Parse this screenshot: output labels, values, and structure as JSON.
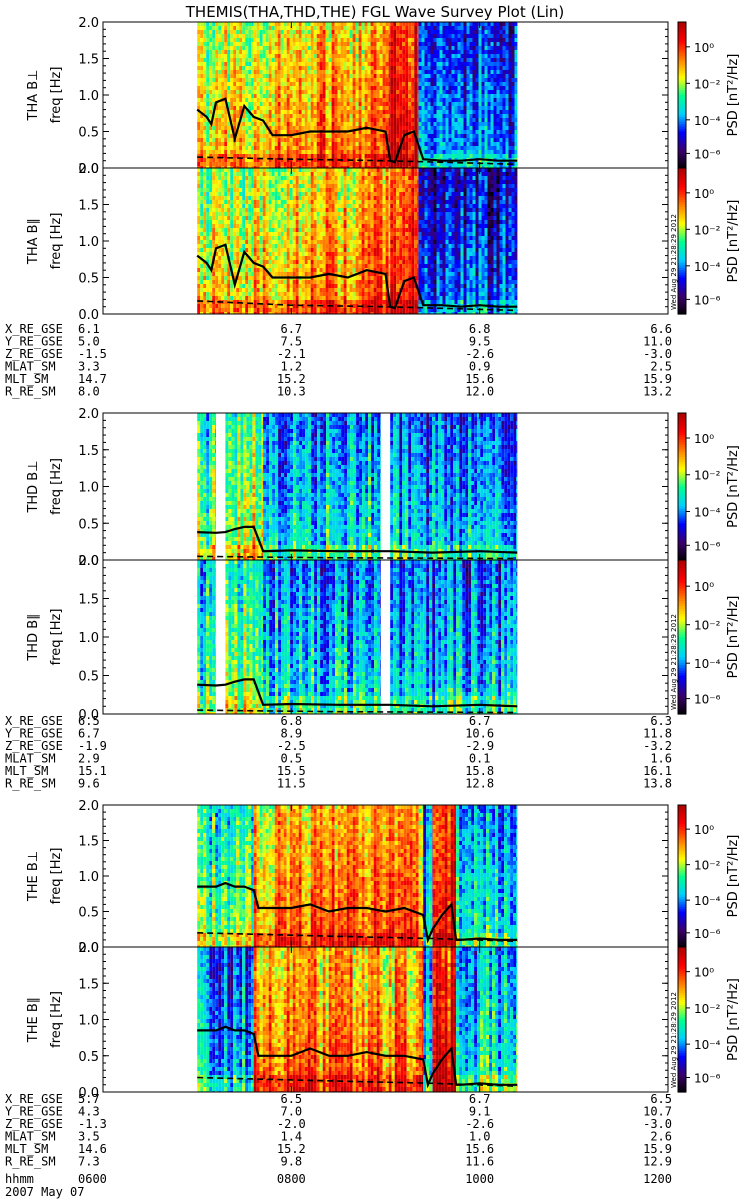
{
  "title": "THEMIS(THA,THD,THE) FGL Wave Survey Plot (Lin)",
  "colorbar": {
    "label": "PSD [nT²/Hz]",
    "ticks": [
      "10⁰",
      "10⁻²",
      "10⁻⁴",
      "10⁻⁶"
    ],
    "timestamp": "Wed Aug 29 21:28:29 2012",
    "colors": [
      "#000000",
      "#3b006b",
      "#0000ff",
      "#00d0ff",
      "#00ff90",
      "#ffff00",
      "#ff8000",
      "#ff0000",
      "#b00000"
    ]
  },
  "time_axis": {
    "row_label": "hhmm",
    "date_label": "2007 May 07",
    "ticks": [
      "0600",
      "0800",
      "1000",
      "1200"
    ],
    "range_hours": [
      6,
      12
    ]
  },
  "chart_data": [
    {
      "type": "heatmap",
      "probe": "THA",
      "component": "B⊥",
      "ylabel": "freq [Hz]",
      "panel_label": "THA B⊥",
      "ylim": [
        0,
        2.0
      ],
      "yticks": [
        "0.0",
        "0.5",
        "1.0",
        "1.5",
        "2.0"
      ],
      "data_spans_hours": [
        [
          7.0,
          7.6
        ],
        [
          7.6,
          8.3
        ],
        [
          8.3,
          9.05
        ],
        [
          9.05,
          9.35
        ],
        [
          9.35,
          10.4
        ]
      ],
      "span_levels": [
        0.7,
        0.75,
        0.8,
        0.95,
        0.35
      ],
      "solid_line": {
        "t": [
          7.0,
          7.1,
          7.15,
          7.2,
          7.3,
          7.4,
          7.5,
          7.6,
          7.7,
          7.8,
          8.0,
          8.2,
          8.4,
          8.6,
          8.8,
          9.0,
          9.05,
          9.1,
          9.2,
          9.3,
          9.4,
          9.6,
          9.8,
          10.0,
          10.2,
          10.4
        ],
        "f": [
          0.8,
          0.7,
          0.6,
          0.9,
          0.95,
          0.4,
          0.85,
          0.7,
          0.65,
          0.45,
          0.45,
          0.5,
          0.5,
          0.5,
          0.55,
          0.5,
          0.1,
          0.08,
          0.45,
          0.5,
          0.12,
          0.1,
          0.1,
          0.12,
          0.1,
          0.1
        ]
      },
      "dashed_line": {
        "t": [
          7.0,
          8.0,
          9.0,
          10.4
        ],
        "f": [
          0.15,
          0.12,
          0.1,
          0.05
        ]
      }
    },
    {
      "type": "heatmap",
      "probe": "THA",
      "component": "B∥",
      "ylabel": "freq [Hz]",
      "panel_label": "THA B∥",
      "ylim": [
        0,
        2.0
      ],
      "yticks": [
        "0.0",
        "0.5",
        "1.0",
        "1.5",
        "2.0"
      ],
      "data_spans_hours": [
        [
          7.0,
          7.6
        ],
        [
          7.6,
          8.3
        ],
        [
          8.3,
          9.05
        ],
        [
          9.05,
          9.35
        ],
        [
          9.35,
          10.4
        ]
      ],
      "span_levels": [
        0.7,
        0.75,
        0.8,
        0.95,
        0.3
      ],
      "solid_line": {
        "t": [
          7.0,
          7.1,
          7.15,
          7.2,
          7.3,
          7.4,
          7.5,
          7.6,
          7.7,
          7.8,
          8.0,
          8.2,
          8.4,
          8.6,
          8.8,
          9.0,
          9.05,
          9.1,
          9.2,
          9.3,
          9.4,
          9.6,
          9.8,
          10.0,
          10.2,
          10.4
        ],
        "f": [
          0.8,
          0.7,
          0.6,
          0.9,
          0.95,
          0.4,
          0.85,
          0.7,
          0.65,
          0.5,
          0.5,
          0.5,
          0.55,
          0.5,
          0.6,
          0.55,
          0.1,
          0.08,
          0.45,
          0.5,
          0.12,
          0.12,
          0.1,
          0.12,
          0.1,
          0.1
        ]
      },
      "dashed_line": {
        "t": [
          7.0,
          8.0,
          9.0,
          10.4
        ],
        "f": [
          0.18,
          0.12,
          0.1,
          0.05
        ]
      }
    },
    {
      "type": "heatmap",
      "probe": "THD",
      "component": "B⊥",
      "ylabel": "freq [Hz]",
      "panel_label": "THD B⊥",
      "ylim": [
        0,
        2.0
      ],
      "yticks": [
        "0.0",
        "0.5",
        "1.0",
        "1.5",
        "2.0"
      ],
      "data_spans_hours": [
        [
          7.0,
          7.2
        ],
        [
          7.3,
          7.7
        ],
        [
          7.7,
          8.95
        ],
        [
          9.05,
          10.4
        ]
      ],
      "span_levels": [
        0.55,
        0.65,
        0.45,
        0.4
      ],
      "solid_line": {
        "t": [
          7.0,
          7.2,
          7.3,
          7.4,
          7.5,
          7.6,
          7.7,
          8.0,
          8.5,
          8.95,
          9.05,
          9.5,
          10.0,
          10.4
        ],
        "f": [
          0.38,
          0.37,
          0.38,
          0.42,
          0.45,
          0.45,
          0.12,
          0.13,
          0.12,
          0.12,
          0.12,
          0.1,
          0.12,
          0.1
        ]
      },
      "dashed_line": {
        "t": [
          7.0,
          7.7,
          8.5,
          10.4
        ],
        "f": [
          0.05,
          0.04,
          0.03,
          0.02
        ]
      }
    },
    {
      "type": "heatmap",
      "probe": "THD",
      "component": "B∥",
      "ylabel": "freq [Hz]",
      "panel_label": "THD B∥",
      "ylim": [
        0,
        2.0
      ],
      "yticks": [
        "0.0",
        "0.5",
        "1.0",
        "1.5",
        "2.0"
      ],
      "data_spans_hours": [
        [
          7.0,
          7.2
        ],
        [
          7.3,
          7.7
        ],
        [
          7.7,
          8.95
        ],
        [
          9.05,
          10.4
        ]
      ],
      "span_levels": [
        0.5,
        0.6,
        0.45,
        0.4
      ],
      "solid_line": {
        "t": [
          7.0,
          7.2,
          7.3,
          7.4,
          7.5,
          7.6,
          7.7,
          8.0,
          8.5,
          8.95,
          9.05,
          9.5,
          10.0,
          10.4
        ],
        "f": [
          0.38,
          0.37,
          0.38,
          0.42,
          0.45,
          0.45,
          0.12,
          0.13,
          0.12,
          0.12,
          0.12,
          0.1,
          0.12,
          0.1
        ]
      },
      "dashed_line": {
        "t": [
          7.0,
          7.7,
          8.5,
          10.4
        ],
        "f": [
          0.05,
          0.04,
          0.03,
          0.02
        ]
      }
    },
    {
      "type": "heatmap",
      "probe": "THE",
      "component": "B⊥",
      "ylabel": "freq [Hz]",
      "panel_label": "THE B⊥",
      "ylim": [
        0,
        2.0
      ],
      "yticks": [
        "0.0",
        "0.5",
        "1.0",
        "1.5",
        "2.0"
      ],
      "data_spans_hours": [
        [
          7.0,
          7.6
        ],
        [
          7.6,
          9.4
        ],
        [
          9.4,
          9.5
        ],
        [
          9.5,
          9.75
        ],
        [
          9.75,
          10.4
        ]
      ],
      "span_levels": [
        0.55,
        0.8,
        0.4,
        0.95,
        0.45
      ],
      "solid_line": {
        "t": [
          7.0,
          7.2,
          7.3,
          7.4,
          7.5,
          7.6,
          7.65,
          7.8,
          8.0,
          8.2,
          8.4,
          8.6,
          8.8,
          9.0,
          9.2,
          9.4,
          9.45,
          9.5,
          9.6,
          9.7,
          9.75,
          9.8,
          10.0,
          10.2,
          10.4
        ],
        "f": [
          0.85,
          0.85,
          0.9,
          0.85,
          0.85,
          0.8,
          0.55,
          0.55,
          0.55,
          0.6,
          0.5,
          0.55,
          0.55,
          0.5,
          0.55,
          0.45,
          0.1,
          0.25,
          0.45,
          0.6,
          0.1,
          0.1,
          0.12,
          0.1,
          0.1
        ]
      },
      "dashed_line": {
        "t": [
          7.0,
          7.6,
          8.5,
          9.5,
          10.4
        ],
        "f": [
          0.2,
          0.18,
          0.15,
          0.12,
          0.08
        ]
      }
    },
    {
      "type": "heatmap",
      "probe": "THE",
      "component": "B∥",
      "ylabel": "freq [Hz]",
      "panel_label": "THE B∥",
      "ylim": [
        0,
        2.0
      ],
      "yticks": [
        "0.0",
        "0.5",
        "1.0",
        "1.5",
        "2.0"
      ],
      "data_spans_hours": [
        [
          7.0,
          7.6
        ],
        [
          7.6,
          9.4
        ],
        [
          9.4,
          9.5
        ],
        [
          9.5,
          9.75
        ],
        [
          9.75,
          10.4
        ]
      ],
      "span_levels": [
        0.4,
        0.8,
        0.4,
        0.95,
        0.45
      ],
      "solid_line": {
        "t": [
          7.0,
          7.2,
          7.3,
          7.4,
          7.5,
          7.6,
          7.65,
          7.8,
          8.0,
          8.2,
          8.4,
          8.6,
          8.8,
          9.0,
          9.2,
          9.4,
          9.45,
          9.5,
          9.6,
          9.7,
          9.75,
          9.8,
          10.0,
          10.2,
          10.4
        ],
        "f": [
          0.85,
          0.85,
          0.9,
          0.85,
          0.85,
          0.8,
          0.5,
          0.5,
          0.5,
          0.6,
          0.5,
          0.5,
          0.55,
          0.5,
          0.5,
          0.45,
          0.1,
          0.25,
          0.45,
          0.6,
          0.1,
          0.1,
          0.12,
          0.1,
          0.1
        ]
      },
      "dashed_line": {
        "t": [
          7.0,
          7.6,
          8.5,
          9.5,
          10.4
        ],
        "f": [
          0.2,
          0.18,
          0.15,
          0.12,
          0.08
        ]
      }
    }
  ],
  "ephemeris": [
    {
      "probe": "THA",
      "rows": [
        {
          "label": "X_RE_GSE",
          "values": [
            "6.1",
            "6.7",
            "6.8",
            "6.6"
          ]
        },
        {
          "label": "Y_RE_GSE",
          "values": [
            "5.0",
            "7.5",
            "9.5",
            "11.0"
          ]
        },
        {
          "label": "Z_RE_GSE",
          "values": [
            "-1.5",
            "-2.1",
            "-2.6",
            "-3.0"
          ]
        },
        {
          "label": "MLAT_SM",
          "values": [
            "3.3",
            "1.2",
            "0.9",
            "2.5"
          ]
        },
        {
          "label": "MLT_SM",
          "values": [
            "14.7",
            "15.2",
            "15.6",
            "15.9"
          ]
        },
        {
          "label": "R_RE_SM",
          "values": [
            "8.0",
            "10.3",
            "12.0",
            "13.2"
          ]
        }
      ]
    },
    {
      "probe": "THD",
      "rows": [
        {
          "label": "X_RE_GSE",
          "values": [
            "6.5",
            "6.8",
            "6.7",
            "6.3"
          ]
        },
        {
          "label": "Y_RE_GSE",
          "values": [
            "6.7",
            "8.9",
            "10.6",
            "11.8"
          ]
        },
        {
          "label": "Z_RE_GSE",
          "values": [
            "-1.9",
            "-2.5",
            "-2.9",
            "-3.2"
          ]
        },
        {
          "label": "MLAT_SM",
          "values": [
            "2.9",
            "0.5",
            "0.1",
            "1.6"
          ]
        },
        {
          "label": "MLT_SM",
          "values": [
            "15.1",
            "15.5",
            "15.8",
            "16.1"
          ]
        },
        {
          "label": "R_RE_SM",
          "values": [
            "9.6",
            "11.5",
            "12.8",
            "13.8"
          ]
        }
      ]
    },
    {
      "probe": "THE",
      "rows": [
        {
          "label": "X_RE_GSE",
          "values": [
            "5.7",
            "6.5",
            "6.7",
            "6.5"
          ]
        },
        {
          "label": "Y_RE_GSE",
          "values": [
            "4.3",
            "7.0",
            "9.1",
            "10.7"
          ]
        },
        {
          "label": "Z_RE_GSE",
          "values": [
            "-1.3",
            "-2.0",
            "-2.6",
            "-3.0"
          ]
        },
        {
          "label": "MLAT_SM",
          "values": [
            "3.5",
            "1.4",
            "1.0",
            "2.6"
          ]
        },
        {
          "label": "MLT_SM",
          "values": [
            "14.6",
            "15.2",
            "15.6",
            "15.9"
          ]
        },
        {
          "label": "R_RE_SM",
          "values": [
            "7.3",
            "9.8",
            "11.6",
            "12.9"
          ]
        }
      ]
    }
  ]
}
